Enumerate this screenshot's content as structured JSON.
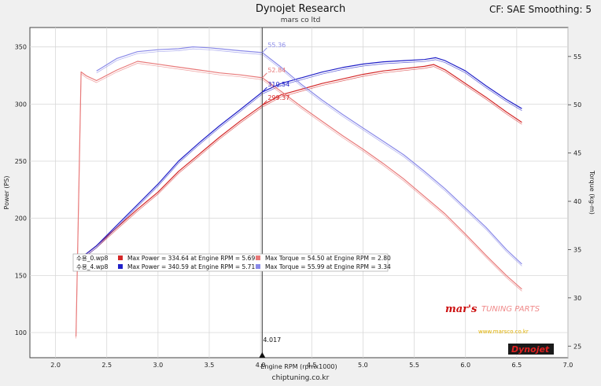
{
  "header": {
    "title": "Dynojet Research",
    "subtitle": "mars co ltd",
    "cf_label": "CF: SAE Smoothing: 5"
  },
  "footer": {
    "source": "chiptuning.co.kr"
  },
  "brand": {
    "name": "mar's",
    "tagline": "TUNING PARTS",
    "url": "www.marsco.co.kr",
    "logo": "Dynojet"
  },
  "colors": {
    "run1_power": "#d42828",
    "run2_power": "#2020c8",
    "run1_torque": "#e87a7a",
    "run2_torque": "#8a8ae8",
    "cursor": "#555555",
    "plot_bg": "#ffffff"
  },
  "chart_data": {
    "type": "line",
    "xlabel": "Engine RPM (rpmx1000)",
    "ylabel_left": "Power (PS)",
    "ylabel_right": "Torque (kg-m)",
    "xlim": [
      1.75,
      7.0
    ],
    "ylim_left": [
      78,
      367
    ],
    "ylim_right": [
      23.8,
      58.0
    ],
    "x_ticks": [
      2.0,
      2.5,
      3.0,
      3.5,
      4.0,
      4.5,
      5.0,
      5.5,
      6.0,
      6.5,
      7.0
    ],
    "y_ticks_left": [
      100,
      150,
      200,
      250,
      300,
      350
    ],
    "y_ticks_right": [
      25,
      30,
      35,
      40,
      45,
      50,
      55
    ],
    "grid": true,
    "cursor": {
      "x_label": "4.017",
      "annotations": [
        {
          "text": "55.36",
          "series": "run2_torque"
        },
        {
          "text": "52.84",
          "series": "run1_torque"
        },
        {
          "text": "310.54",
          "series": "run2_power"
        },
        {
          "text": "299.37",
          "series": "run1_power"
        }
      ]
    },
    "legend": [
      {
        "file": "수용_0.wp8",
        "max_power": "Max Power = 334.64 at Engine RPM = 5.69",
        "max_torque": "Max Torque = 54.50 at Engine RPM = 2.80"
      },
      {
        "file": "수용_4.wp8",
        "max_power": "Max Power = 340.59 at Engine RPM = 5.71",
        "max_torque": "Max Torque = 55.99 at Engine RPM = 3.34"
      }
    ],
    "series": [
      {
        "key": "run1_power",
        "axis": "left",
        "x": [
          2.25,
          2.3,
          2.4,
          2.6,
          2.8,
          3.0,
          3.2,
          3.4,
          3.6,
          3.8,
          4.017,
          4.2,
          4.4,
          4.6,
          4.8,
          5.0,
          5.2,
          5.4,
          5.6,
          5.69,
          5.8,
          6.0,
          6.2,
          6.4,
          6.55
        ],
        "y": [
          166,
          169,
          176,
          192,
          208,
          223,
          241,
          256,
          271,
          285,
          299,
          308,
          313,
          318,
          322,
          326,
          329,
          331,
          333,
          334.6,
          330,
          318,
          306,
          293,
          284
        ]
      },
      {
        "key": "run2_power",
        "axis": "left",
        "x": [
          2.25,
          2.3,
          2.4,
          2.6,
          2.8,
          3.0,
          3.2,
          3.4,
          3.6,
          3.8,
          4.017,
          4.2,
          4.4,
          4.6,
          4.8,
          5.0,
          5.2,
          5.4,
          5.6,
          5.71,
          5.8,
          6.0,
          6.2,
          6.4,
          6.55
        ],
        "y": [
          166,
          169,
          176,
          194,
          212,
          230,
          250,
          266,
          281,
          295,
          310.5,
          318,
          323,
          328,
          332,
          335,
          337,
          338,
          339,
          340.6,
          338,
          329,
          316,
          304,
          296
        ]
      },
      {
        "key": "run1_torque",
        "axis": "right",
        "x": [
          2.2,
          2.25,
          2.3,
          2.4,
          2.6,
          2.8,
          3.0,
          3.2,
          3.4,
          3.6,
          3.8,
          4.017,
          4.2,
          4.4,
          4.6,
          4.8,
          5.0,
          5.2,
          5.4,
          5.6,
          5.8,
          6.0,
          6.2,
          6.4,
          6.55
        ],
        "y": [
          26.0,
          53.4,
          53.0,
          52.5,
          53.6,
          54.5,
          54.2,
          53.9,
          53.6,
          53.3,
          53.1,
          52.8,
          51.4,
          49.8,
          48.3,
          46.8,
          45.4,
          43.9,
          42.3,
          40.5,
          38.7,
          36.6,
          34.4,
          32.3,
          30.9
        ]
      },
      {
        "key": "run2_torque",
        "axis": "right",
        "x": [
          2.4,
          2.6,
          2.8,
          3.0,
          3.2,
          3.34,
          3.5,
          3.6,
          3.8,
          4.017,
          4.2,
          4.4,
          4.6,
          4.8,
          5.0,
          5.2,
          5.4,
          5.6,
          5.8,
          6.0,
          6.2,
          6.4,
          6.55
        ],
        "y": [
          53.5,
          54.8,
          55.5,
          55.7,
          55.8,
          56.0,
          55.9,
          55.8,
          55.6,
          55.4,
          53.9,
          52.1,
          50.5,
          49.0,
          47.6,
          46.2,
          44.8,
          43.1,
          41.3,
          39.3,
          37.3,
          35.0,
          33.5
        ]
      }
    ]
  }
}
